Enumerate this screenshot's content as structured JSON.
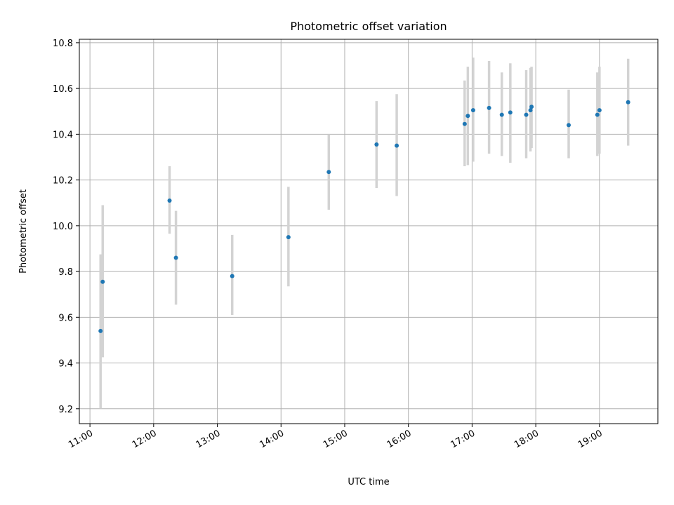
{
  "chart_data": {
    "type": "scatter",
    "title": "Photometric offset variation",
    "xlabel": "UTC time",
    "ylabel": "Photometric offset",
    "xlim": [
      "10:50",
      "19:55"
    ],
    "ylim": [
      9.135,
      10.815
    ],
    "x_ticks": [
      "11:00",
      "12:00",
      "13:00",
      "14:00",
      "15:00",
      "16:00",
      "17:00",
      "18:00",
      "19:00"
    ],
    "y_ticks": [
      9.2,
      9.4,
      9.6,
      9.8,
      10.0,
      10.2,
      10.4,
      10.6,
      10.8
    ],
    "y_tick_labels": [
      "9.2",
      "9.4",
      "9.6",
      "9.8",
      "10.0",
      "10.2",
      "10.4",
      "10.6",
      "10.8"
    ],
    "grid": true,
    "series": [
      {
        "marker_color": "#1f77b4",
        "errorbar_color": "#d3d3d3",
        "points": [
          {
            "t": "11:10",
            "y": 9.54,
            "lo": 9.2,
            "hi": 9.875
          },
          {
            "t": "11:12",
            "y": 9.755,
            "lo": 9.425,
            "hi": 10.09
          },
          {
            "t": "12:15",
            "y": 10.11,
            "lo": 9.965,
            "hi": 10.26
          },
          {
            "t": "12:21",
            "y": 9.86,
            "lo": 9.655,
            "hi": 10.065
          },
          {
            "t": "13:14",
            "y": 9.78,
            "lo": 9.61,
            "hi": 9.96
          },
          {
            "t": "14:07",
            "y": 9.95,
            "lo": 9.735,
            "hi": 10.17
          },
          {
            "t": "14:45",
            "y": 10.235,
            "lo": 10.07,
            "hi": 10.4
          },
          {
            "t": "15:30",
            "y": 10.355,
            "lo": 10.165,
            "hi": 10.545
          },
          {
            "t": "15:49",
            "y": 10.35,
            "lo": 10.13,
            "hi": 10.575
          },
          {
            "t": "16:53",
            "y": 10.445,
            "lo": 10.26,
            "hi": 10.635
          },
          {
            "t": "16:56",
            "y": 10.48,
            "lo": 10.265,
            "hi": 10.695
          },
          {
            "t": "17:01",
            "y": 10.505,
            "lo": 10.28,
            "hi": 10.735
          },
          {
            "t": "17:16",
            "y": 10.515,
            "lo": 10.315,
            "hi": 10.72
          },
          {
            "t": "17:28",
            "y": 10.485,
            "lo": 10.305,
            "hi": 10.67
          },
          {
            "t": "17:36",
            "y": 10.495,
            "lo": 10.275,
            "hi": 10.71
          },
          {
            "t": "17:51",
            "y": 10.485,
            "lo": 10.295,
            "hi": 10.68
          },
          {
            "t": "17:55",
            "y": 10.505,
            "lo": 10.325,
            "hi": 10.69
          },
          {
            "t": "17:56",
            "y": 10.52,
            "lo": 10.34,
            "hi": 10.695
          },
          {
            "t": "18:31",
            "y": 10.44,
            "lo": 10.295,
            "hi": 10.595
          },
          {
            "t": "18:58",
            "y": 10.485,
            "lo": 10.305,
            "hi": 10.67
          },
          {
            "t": "19:00",
            "y": 10.505,
            "lo": 10.315,
            "hi": 10.695
          },
          {
            "t": "19:27",
            "y": 10.54,
            "lo": 10.35,
            "hi": 10.73
          }
        ]
      }
    ]
  }
}
